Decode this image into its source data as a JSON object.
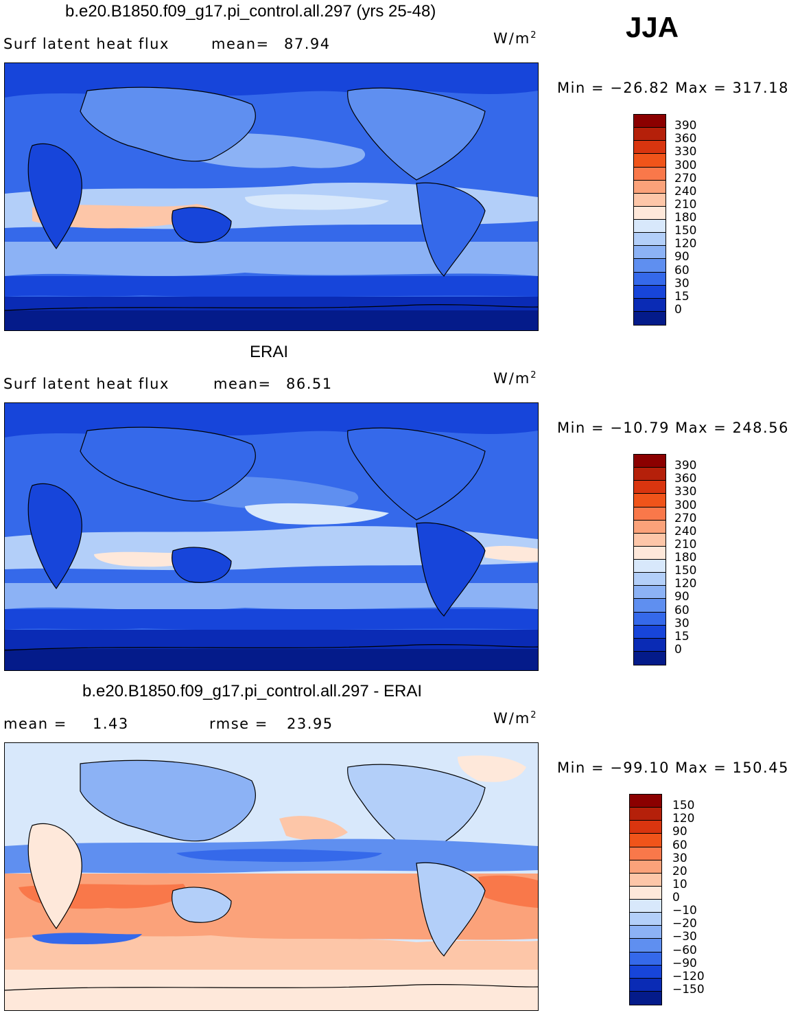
{
  "season": "JJA",
  "panels": [
    {
      "title": "b.e20.B1850.f09_g17.pi_control.all.297 (yrs 25-48)",
      "left_label": "Surf  latent  heat  flux",
      "stat_label": "mean=",
      "stat_value": "87.94",
      "units": "W/m",
      "units_exp": "2",
      "minmax": "Min  =  −26.82  Max  =  317.18",
      "colorbar": {
        "labels": [
          "390",
          "360",
          "330",
          "300",
          "270",
          "240",
          "210",
          "180",
          "150",
          "120",
          "90",
          "60",
          "30",
          "15",
          "0"
        ],
        "colors": [
          "#8b0000",
          "#b5200a",
          "#d9350f",
          "#f0541a",
          "#f9784a",
          "#fba27a",
          "#fdc6a8",
          "#fee8da",
          "#d8e8fb",
          "#b3cff9",
          "#8cb2f5",
          "#5f8ff0",
          "#3569ea",
          "#1745da",
          "#0a2bb5",
          "#041b8a"
        ]
      }
    },
    {
      "title": "ERAI",
      "left_label": "Surf  latent  heat  flux",
      "stat_label": "mean=",
      "stat_value": "86.51",
      "units": "W/m",
      "units_exp": "2",
      "minmax": "Min  =  −10.79  Max  =  248.56",
      "colorbar": {
        "labels": [
          "390",
          "360",
          "330",
          "300",
          "270",
          "240",
          "210",
          "180",
          "150",
          "120",
          "90",
          "60",
          "30",
          "15",
          "0"
        ],
        "colors": [
          "#8b0000",
          "#b5200a",
          "#d9350f",
          "#f0541a",
          "#f9784a",
          "#fba27a",
          "#fdc6a8",
          "#fee8da",
          "#d8e8fb",
          "#b3cff9",
          "#8cb2f5",
          "#5f8ff0",
          "#3569ea",
          "#1745da",
          "#0a2bb5",
          "#041b8a"
        ]
      }
    },
    {
      "title": "b.e20.B1850.f09_g17.pi_control.all.297 - ERAI",
      "left_label": "mean  =",
      "left_value": "1.43",
      "stat_label": "rmse  =",
      "stat_value": "23.95",
      "units": "W/m",
      "units_exp": "2",
      "minmax": "Min  =  −99.10  Max  =  150.45",
      "colorbar": {
        "labels": [
          "150",
          "120",
          "90",
          "60",
          "30",
          "20",
          "10",
          "0",
          "−10",
          "−20",
          "−30",
          "−60",
          "−90",
          "−120",
          "−150"
        ],
        "colors": [
          "#8b0000",
          "#b5200a",
          "#d9350f",
          "#f0541a",
          "#f9784a",
          "#fba27a",
          "#fdc6a8",
          "#fee8da",
          "#d8e8fb",
          "#b3cff9",
          "#8cb2f5",
          "#5f8ff0",
          "#3569ea",
          "#1745da",
          "#0a2bb5",
          "#041b8a"
        ]
      }
    }
  ],
  "colors": {
    "deep_blue": "#041b8a",
    "mid_blue": "#3569ea",
    "light_blue": "#b3cff9",
    "pale": "#fee8da",
    "salmon": "#fba27a",
    "orange": "#f0541a",
    "coastline": "#000000"
  }
}
